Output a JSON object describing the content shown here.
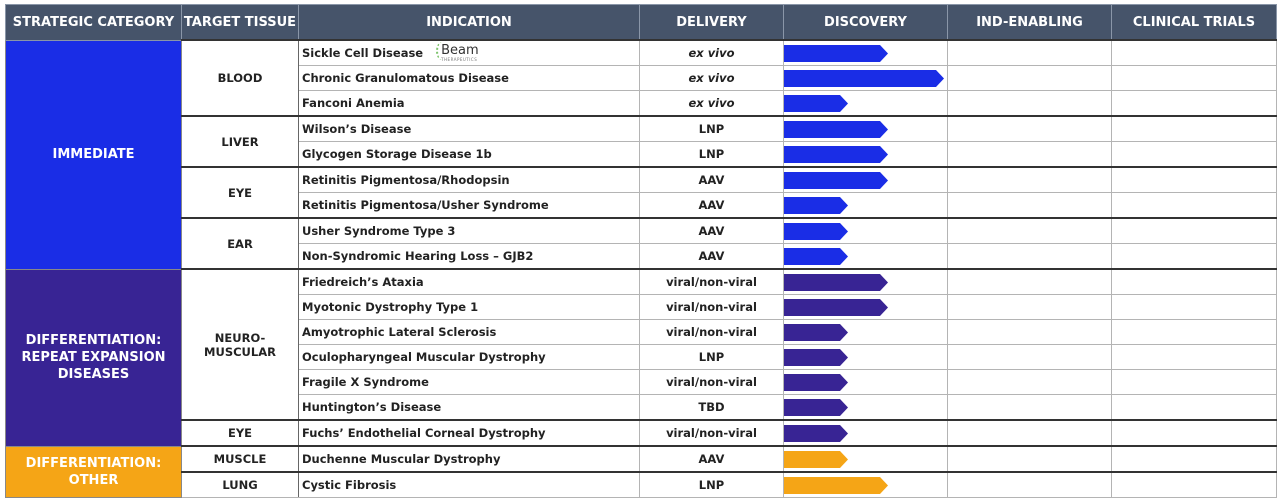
{
  "headers": [
    "STRATEGIC CATEGORY",
    "TARGET TISSUE",
    "INDICATION",
    "DELIVERY",
    "DISCOVERY",
    "IND-ENABLING",
    "CLINICAL TRIALS"
  ],
  "colors": {
    "header": "#46546a",
    "immediate": "#1a2de6",
    "repeat": "#382494",
    "other": "#f5a516"
  },
  "partner_logo": {
    "name": "Beam",
    "subtitle": "THERAPEUTICS"
  },
  "categories": [
    {
      "label": "IMMEDIATE",
      "color_key": "immediate",
      "rows": 9
    },
    {
      "label": "DIFFERENTIATION: REPEAT EXPANSION DISEASES",
      "color_key": "repeat",
      "rows": 7
    },
    {
      "label": "DIFFERENTIATION: OTHER",
      "color_key": "other",
      "rows": 2
    }
  ],
  "tissues": [
    {
      "label": "BLOOD",
      "rows": 3
    },
    {
      "label": "LIVER",
      "rows": 2
    },
    {
      "label": "EYE",
      "rows": 2
    },
    {
      "label": "EAR",
      "rows": 2
    },
    {
      "label": "NEURO-MUSCULAR",
      "rows": 6
    },
    {
      "label": "EYE",
      "rows": 1
    },
    {
      "label": "MUSCLE",
      "rows": 1
    },
    {
      "label": "LUNG",
      "rows": 1
    }
  ],
  "programs": [
    {
      "indication": "Sickle Cell Disease",
      "delivery": "ex vivo",
      "italic": true,
      "progress": 0.65,
      "category": "immediate",
      "logo": true
    },
    {
      "indication": "Chronic Granulomatous Disease",
      "delivery": "ex vivo",
      "italic": true,
      "progress": 1.0,
      "category": "immediate"
    },
    {
      "indication": "Fanconi Anemia",
      "delivery": "ex vivo",
      "italic": true,
      "progress": 0.4,
      "category": "immediate"
    },
    {
      "indication": "Wilson’s Disease",
      "delivery": "LNP",
      "progress": 0.65,
      "category": "immediate"
    },
    {
      "indication": "Glycogen Storage Disease 1b",
      "delivery": "LNP",
      "progress": 0.65,
      "category": "immediate"
    },
    {
      "indication": "Retinitis Pigmentosa/Rhodopsin",
      "delivery": "AAV",
      "progress": 0.65,
      "category": "immediate"
    },
    {
      "indication": "Retinitis Pigmentosa/Usher Syndrome",
      "delivery": "AAV",
      "progress": 0.4,
      "category": "immediate"
    },
    {
      "indication": "Usher Syndrome Type 3",
      "delivery": "AAV",
      "progress": 0.4,
      "category": "immediate"
    },
    {
      "indication": "Non-Syndromic Hearing Loss – GJB2",
      "delivery": "AAV",
      "progress": 0.4,
      "category": "immediate"
    },
    {
      "indication": "Friedreich’s Ataxia",
      "delivery": "viral/non-viral",
      "progress": 0.65,
      "category": "repeat"
    },
    {
      "indication": "Myotonic Dystrophy Type 1",
      "delivery": "viral/non-viral",
      "progress": 0.65,
      "category": "repeat"
    },
    {
      "indication": "Amyotrophic Lateral Sclerosis",
      "delivery": "viral/non-viral",
      "progress": 0.4,
      "category": "repeat"
    },
    {
      "indication": "Oculopharyngeal Muscular Dystrophy",
      "delivery": "LNP",
      "progress": 0.4,
      "category": "repeat"
    },
    {
      "indication": "Fragile X Syndrome",
      "delivery": "viral/non-viral",
      "progress": 0.4,
      "category": "repeat"
    },
    {
      "indication": "Huntington’s Disease",
      "delivery": "TBD",
      "progress": 0.4,
      "category": "repeat"
    },
    {
      "indication": "Fuchs’ Endothelial Corneal Dystrophy",
      "delivery": "viral/non-viral",
      "progress": 0.4,
      "category": "repeat"
    },
    {
      "indication": "Duchenne Muscular Dystrophy",
      "delivery": "AAV",
      "progress": 0.4,
      "category": "other"
    },
    {
      "indication": "Cystic Fibrosis",
      "delivery": "LNP",
      "progress": 0.65,
      "category": "other"
    }
  ]
}
